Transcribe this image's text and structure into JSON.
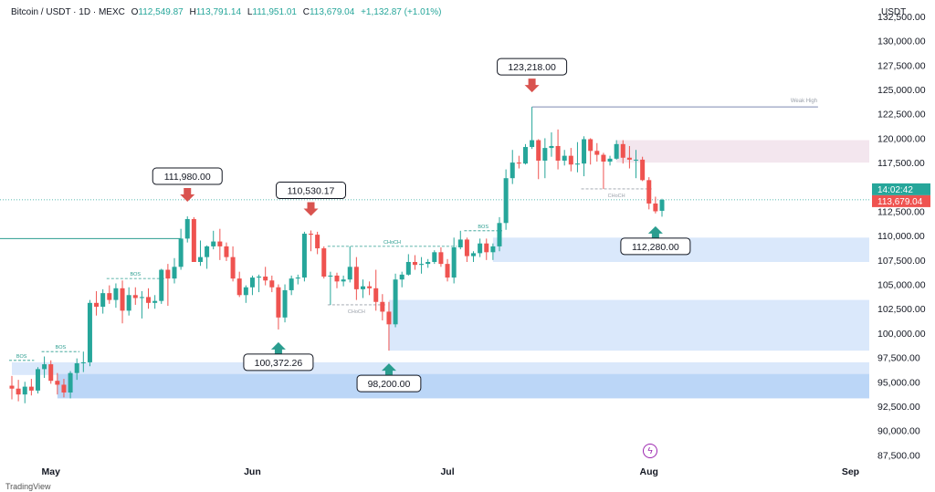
{
  "header": {
    "symbol": "Bitcoin / USDT · 1D · MEXC",
    "open_label": "O",
    "open": "112,549.87",
    "high_label": "H",
    "high": "113,791.14",
    "low_label": "L",
    "low": "111,951.01",
    "close_label": "C",
    "close": "113,679.04",
    "change": "+1,132.87 (+1.01%)"
  },
  "axis_unit": "USDT",
  "current_price_tag": {
    "countdown": "14:02:42",
    "price": "113,679.04"
  },
  "colors": {
    "up": "#26a69a",
    "down": "#ef5350",
    "zone_blue": "#bbd6f7",
    "zone_pink": "#f3e6ee",
    "arrow_down": "#d9534f",
    "arrow_up": "#2a9d8f"
  },
  "branding": "TradingView",
  "chart_data": {
    "type": "candlestick",
    "y_ticks": [
      "132,500.00",
      "130,000.00",
      "127,500.00",
      "125,000.00",
      "122,500.00",
      "120,000.00",
      "117,500.00",
      "115,000.00",
      "112,500.00",
      "110,000.00",
      "107,500.00",
      "105,000.00",
      "102,500.00",
      "100,000.00",
      "97,500.00",
      "95,000.00",
      "92,500.00",
      "90,000.00",
      "87,500.00"
    ],
    "ylim": [
      86500,
      134000
    ],
    "x_ticks": [
      {
        "label": "May",
        "date": "2025-05-01"
      },
      {
        "label": "Jun",
        "date": "2025-06-01"
      },
      {
        "label": "Jul",
        "date": "2025-07-01"
      },
      {
        "label": "Aug",
        "date": "2025-08-01"
      },
      {
        "label": "Sep",
        "date": "2025-09-01"
      }
    ],
    "x_start": "2025-04-25",
    "candles": [
      {
        "t": "2025-04-25",
        "o": 94600,
        "h": 95600,
        "l": 93200,
        "c": 94300
      },
      {
        "t": "2025-04-26",
        "o": 94300,
        "h": 95200,
        "l": 93000,
        "c": 93700
      },
      {
        "t": "2025-04-27",
        "o": 93700,
        "h": 95000,
        "l": 92800,
        "c": 94500
      },
      {
        "t": "2025-04-28",
        "o": 94500,
        "h": 95300,
        "l": 93600,
        "c": 94100
      },
      {
        "t": "2025-04-29",
        "o": 94100,
        "h": 96500,
        "l": 93800,
        "c": 96300
      },
      {
        "t": "2025-04-30",
        "o": 96300,
        "h": 97600,
        "l": 95400,
        "c": 96800
      },
      {
        "t": "2025-05-01",
        "o": 96800,
        "h": 97200,
        "l": 94800,
        "c": 95100
      },
      {
        "t": "2025-05-02",
        "o": 95100,
        "h": 95900,
        "l": 93700,
        "c": 94700
      },
      {
        "t": "2025-05-03",
        "o": 94700,
        "h": 95300,
        "l": 93400,
        "c": 93900
      },
      {
        "t": "2025-05-04",
        "o": 93900,
        "h": 96100,
        "l": 93300,
        "c": 95900
      },
      {
        "t": "2025-05-05",
        "o": 95900,
        "h": 97400,
        "l": 95200,
        "c": 96900
      },
      {
        "t": "2025-05-06",
        "o": 96900,
        "h": 98100,
        "l": 96000,
        "c": 97000
      },
      {
        "t": "2025-05-07",
        "o": 97000,
        "h": 103400,
        "l": 96600,
        "c": 103100
      },
      {
        "t": "2025-05-08",
        "o": 103100,
        "h": 104300,
        "l": 101800,
        "c": 102700
      },
      {
        "t": "2025-05-09",
        "o": 102700,
        "h": 104500,
        "l": 102000,
        "c": 104100
      },
      {
        "t": "2025-05-10",
        "o": 104100,
        "h": 104900,
        "l": 103000,
        "c": 103400
      },
      {
        "t": "2025-05-11",
        "o": 103400,
        "h": 105100,
        "l": 102600,
        "c": 104600
      },
      {
        "t": "2025-05-12",
        "o": 104600,
        "h": 105400,
        "l": 101000,
        "c": 102300
      },
      {
        "t": "2025-05-13",
        "o": 102300,
        "h": 104700,
        "l": 101800,
        "c": 103900
      },
      {
        "t": "2025-05-14",
        "o": 103900,
        "h": 104700,
        "l": 102900,
        "c": 103600
      },
      {
        "t": "2025-05-15",
        "o": 103600,
        "h": 104300,
        "l": 101500,
        "c": 103700
      },
      {
        "t": "2025-05-16",
        "o": 103700,
        "h": 104600,
        "l": 102500,
        "c": 103100
      },
      {
        "t": "2025-05-17",
        "o": 103100,
        "h": 103900,
        "l": 102500,
        "c": 103300
      },
      {
        "t": "2025-05-18",
        "o": 103300,
        "h": 106600,
        "l": 103000,
        "c": 106500
      },
      {
        "t": "2025-05-19",
        "o": 106500,
        "h": 107100,
        "l": 102800,
        "c": 105600
      },
      {
        "t": "2025-05-20",
        "o": 105600,
        "h": 107700,
        "l": 105100,
        "c": 106800
      },
      {
        "t": "2025-05-21",
        "o": 106800,
        "h": 110700,
        "l": 106500,
        "c": 109700
      },
      {
        "t": "2025-05-22",
        "o": 109700,
        "h": 111980,
        "l": 109300,
        "c": 111700
      },
      {
        "t": "2025-05-23",
        "o": 111700,
        "h": 111900,
        "l": 107300,
        "c": 107300
      },
      {
        "t": "2025-05-24",
        "o": 107300,
        "h": 109500,
        "l": 106900,
        "c": 107800
      },
      {
        "t": "2025-05-25",
        "o": 107800,
        "h": 109000,
        "l": 106600,
        "c": 108900
      },
      {
        "t": "2025-05-26",
        "o": 108900,
        "h": 110500,
        "l": 108600,
        "c": 109400
      },
      {
        "t": "2025-05-27",
        "o": 109400,
        "h": 110700,
        "l": 107500,
        "c": 108900
      },
      {
        "t": "2025-05-28",
        "o": 108900,
        "h": 109300,
        "l": 107400,
        "c": 107800
      },
      {
        "t": "2025-05-29",
        "o": 107800,
        "h": 108900,
        "l": 105300,
        "c": 105600
      },
      {
        "t": "2025-05-30",
        "o": 105600,
        "h": 106300,
        "l": 103700,
        "c": 103900
      },
      {
        "t": "2025-05-31",
        "o": 103900,
        "h": 104900,
        "l": 103100,
        "c": 104700
      },
      {
        "t": "2025-06-01",
        "o": 104700,
        "h": 105900,
        "l": 103900,
        "c": 105700
      },
      {
        "t": "2025-06-02",
        "o": 105700,
        "h": 106000,
        "l": 104200,
        "c": 105800
      },
      {
        "t": "2025-06-03",
        "o": 105800,
        "h": 106800,
        "l": 104900,
        "c": 105400
      },
      {
        "t": "2025-06-04",
        "o": 105400,
        "h": 105900,
        "l": 104200,
        "c": 104700
      },
      {
        "t": "2025-06-05",
        "o": 104700,
        "h": 105000,
        "l": 100372,
        "c": 101600
      },
      {
        "t": "2025-06-06",
        "o": 101600,
        "h": 105000,
        "l": 101100,
        "c": 104400
      },
      {
        "t": "2025-06-07",
        "o": 104400,
        "h": 105900,
        "l": 103900,
        "c": 105600
      },
      {
        "t": "2025-06-08",
        "o": 105600,
        "h": 106000,
        "l": 105000,
        "c": 105700
      },
      {
        "t": "2025-06-09",
        "o": 105700,
        "h": 110400,
        "l": 105300,
        "c": 110200
      },
      {
        "t": "2025-06-10",
        "o": 110200,
        "h": 110530,
        "l": 108400,
        "c": 110100
      },
      {
        "t": "2025-06-11",
        "o": 110100,
        "h": 110400,
        "l": 108100,
        "c": 108700
      },
      {
        "t": "2025-06-12",
        "o": 108700,
        "h": 108900,
        "l": 105600,
        "c": 105800
      },
      {
        "t": "2025-06-13",
        "o": 105800,
        "h": 106300,
        "l": 102900,
        "c": 105900
      },
      {
        "t": "2025-06-14",
        "o": 105900,
        "h": 106200,
        "l": 104600,
        "c": 105300
      },
      {
        "t": "2025-06-15",
        "o": 105300,
        "h": 105900,
        "l": 104800,
        "c": 105500
      },
      {
        "t": "2025-06-16",
        "o": 105500,
        "h": 108900,
        "l": 105200,
        "c": 106800
      },
      {
        "t": "2025-06-17",
        "o": 106800,
        "h": 107800,
        "l": 103400,
        "c": 104500
      },
      {
        "t": "2025-06-18",
        "o": 104500,
        "h": 105500,
        "l": 103600,
        "c": 104800
      },
      {
        "t": "2025-06-19",
        "o": 104800,
        "h": 105300,
        "l": 103900,
        "c": 104600
      },
      {
        "t": "2025-06-20",
        "o": 104600,
        "h": 106500,
        "l": 102300,
        "c": 103200
      },
      {
        "t": "2025-06-21",
        "o": 103200,
        "h": 104000,
        "l": 101300,
        "c": 102200
      },
      {
        "t": "2025-06-22",
        "o": 102200,
        "h": 103200,
        "l": 98200,
        "c": 100900
      },
      {
        "t": "2025-06-23",
        "o": 100900,
        "h": 106100,
        "l": 100600,
        "c": 105500
      },
      {
        "t": "2025-06-24",
        "o": 105500,
        "h": 106300,
        "l": 104700,
        "c": 106000
      },
      {
        "t": "2025-06-25",
        "o": 106000,
        "h": 108100,
        "l": 105900,
        "c": 107300
      },
      {
        "t": "2025-06-26",
        "o": 107300,
        "h": 108000,
        "l": 106500,
        "c": 107000
      },
      {
        "t": "2025-06-27",
        "o": 107000,
        "h": 107800,
        "l": 106100,
        "c": 107100
      },
      {
        "t": "2025-06-28",
        "o": 107100,
        "h": 107600,
        "l": 106700,
        "c": 107300
      },
      {
        "t": "2025-06-29",
        "o": 107300,
        "h": 108500,
        "l": 107100,
        "c": 108300
      },
      {
        "t": "2025-06-30",
        "o": 108300,
        "h": 108800,
        "l": 106800,
        "c": 107100
      },
      {
        "t": "2025-07-01",
        "o": 107100,
        "h": 107600,
        "l": 105300,
        "c": 105700
      },
      {
        "t": "2025-07-02",
        "o": 105700,
        "h": 109800,
        "l": 105100,
        "c": 108800
      },
      {
        "t": "2025-07-03",
        "o": 108800,
        "h": 110500,
        "l": 108600,
        "c": 109600
      },
      {
        "t": "2025-07-04",
        "o": 109600,
        "h": 109800,
        "l": 107300,
        "c": 107900
      },
      {
        "t": "2025-07-05",
        "o": 107900,
        "h": 108400,
        "l": 107300,
        "c": 108200
      },
      {
        "t": "2025-07-06",
        "o": 108200,
        "h": 109700,
        "l": 107800,
        "c": 109200
      },
      {
        "t": "2025-07-07",
        "o": 109200,
        "h": 109700,
        "l": 107500,
        "c": 108300
      },
      {
        "t": "2025-07-08",
        "o": 108300,
        "h": 109200,
        "l": 107500,
        "c": 108900
      },
      {
        "t": "2025-07-09",
        "o": 108900,
        "h": 111900,
        "l": 108400,
        "c": 111300
      },
      {
        "t": "2025-07-10",
        "o": 111300,
        "h": 116800,
        "l": 110600,
        "c": 115900
      },
      {
        "t": "2025-07-11",
        "o": 115900,
        "h": 118800,
        "l": 115300,
        "c": 117500
      },
      {
        "t": "2025-07-12",
        "o": 117500,
        "h": 118200,
        "l": 116900,
        "c": 117400
      },
      {
        "t": "2025-07-13",
        "o": 117400,
        "h": 119400,
        "l": 117300,
        "c": 119100
      },
      {
        "t": "2025-07-14",
        "o": 119100,
        "h": 123218,
        "l": 118900,
        "c": 119800
      },
      {
        "t": "2025-07-15",
        "o": 119800,
        "h": 119900,
        "l": 115800,
        "c": 117700
      },
      {
        "t": "2025-07-16",
        "o": 117700,
        "h": 120000,
        "l": 115900,
        "c": 119000
      },
      {
        "t": "2025-07-17",
        "o": 119000,
        "h": 120600,
        "l": 118100,
        "c": 119200
      },
      {
        "t": "2025-07-18",
        "o": 119200,
        "h": 120900,
        "l": 116800,
        "c": 117700
      },
      {
        "t": "2025-07-19",
        "o": 117700,
        "h": 118800,
        "l": 117200,
        "c": 118200
      },
      {
        "t": "2025-07-20",
        "o": 118200,
        "h": 119000,
        "l": 116600,
        "c": 117300
      },
      {
        "t": "2025-07-21",
        "o": 117300,
        "h": 119600,
        "l": 116500,
        "c": 117400
      },
      {
        "t": "2025-07-22",
        "o": 117400,
        "h": 120200,
        "l": 116100,
        "c": 119900
      },
      {
        "t": "2025-07-23",
        "o": 119900,
        "h": 120000,
        "l": 117300,
        "c": 118700
      },
      {
        "t": "2025-07-24",
        "o": 118700,
        "h": 119500,
        "l": 117600,
        "c": 118300
      },
      {
        "t": "2025-07-25",
        "o": 118300,
        "h": 118500,
        "l": 114800,
        "c": 117600
      },
      {
        "t": "2025-07-26",
        "o": 117600,
        "h": 118200,
        "l": 117200,
        "c": 117900
      },
      {
        "t": "2025-07-27",
        "o": 117900,
        "h": 119800,
        "l": 117800,
        "c": 119400
      },
      {
        "t": "2025-07-28",
        "o": 119400,
        "h": 119800,
        "l": 117400,
        "c": 118000
      },
      {
        "t": "2025-07-29",
        "o": 118000,
        "h": 119200,
        "l": 116900,
        "c": 117800
      },
      {
        "t": "2025-07-30",
        "o": 117800,
        "h": 118800,
        "l": 115900,
        "c": 117800
      },
      {
        "t": "2025-07-31",
        "o": 117800,
        "h": 118100,
        "l": 115600,
        "c": 115700
      },
      {
        "t": "2025-08-01",
        "o": 115700,
        "h": 116000,
        "l": 112700,
        "c": 113300
      },
      {
        "t": "2025-08-02",
        "o": 113300,
        "h": 114000,
        "l": 112280,
        "c": 112500
      },
      {
        "t": "2025-08-03",
        "o": 112549.87,
        "h": 113791.14,
        "l": 111951.01,
        "c": 113679.04
      }
    ],
    "zones": [
      {
        "kind": "demand",
        "from": "2025-04-25",
        "to": "2025-09-04",
        "y0": 97000,
        "y1": 95700,
        "shade": "light"
      },
      {
        "kind": "demand",
        "from": "2025-05-02",
        "to": "2025-09-04",
        "y0": 95800,
        "y1": 93300,
        "shade": "dark"
      },
      {
        "kind": "demand",
        "from": "2025-06-22",
        "to": "2025-09-04",
        "y0": 103400,
        "y1": 98200,
        "shade": "light"
      },
      {
        "kind": "demand",
        "from": "2025-07-08",
        "to": "2025-09-04",
        "y0": 109800,
        "y1": 107300,
        "shade": "light"
      },
      {
        "kind": "supply",
        "from": "2025-07-27",
        "to": "2025-09-04",
        "y0": 119800,
        "y1": 117500,
        "shade": "pink"
      }
    ],
    "structure_labels": [
      {
        "text": "BOS",
        "date": "2025-04-25",
        "price": 97200,
        "to": "2025-04-28"
      },
      {
        "text": "BOS",
        "date": "2025-04-30",
        "price": 98100,
        "to": "2025-05-05"
      },
      {
        "text": "BOS",
        "date": "2025-05-10",
        "price": 105600,
        "to": "2025-05-18"
      },
      {
        "text": "CHoCH",
        "date": "2025-06-13",
        "price": 108900,
        "to": "2025-07-02"
      },
      {
        "text": "CHoCH",
        "date": "2025-06-13",
        "price": 102900,
        "to": "2025-06-21",
        "below": true
      },
      {
        "text": "BOS",
        "date": "2025-07-04",
        "price": 110500,
        "to": "2025-07-09"
      },
      {
        "text": "CHoCH",
        "date": "2025-07-22",
        "price": 114800,
        "to": "2025-08-01",
        "below": true
      }
    ],
    "horizontal_lines": [
      {
        "price": 109700,
        "from": "2025-04-17",
        "to": "2025-05-21"
      },
      {
        "price": 123218,
        "from": "2025-07-14",
        "to": "2025-08-27",
        "label": "Weak High"
      }
    ],
    "callouts": [
      {
        "text": "111,980.00",
        "date": "2025-05-22",
        "price": 111980,
        "dir": "down"
      },
      {
        "text": "110,530.17",
        "date": "2025-06-10",
        "price": 110530.17,
        "dir": "down"
      },
      {
        "text": "100,372.26",
        "date": "2025-06-05",
        "price": 100372.26,
        "dir": "up"
      },
      {
        "text": "98,200.00",
        "date": "2025-06-22",
        "price": 98200,
        "dir": "up"
      },
      {
        "text": "123,218.00",
        "date": "2025-07-14",
        "price": 123218,
        "dir": "down"
      },
      {
        "text": "112,280.00",
        "date": "2025-08-02",
        "price": 112280,
        "dir": "up"
      }
    ]
  }
}
